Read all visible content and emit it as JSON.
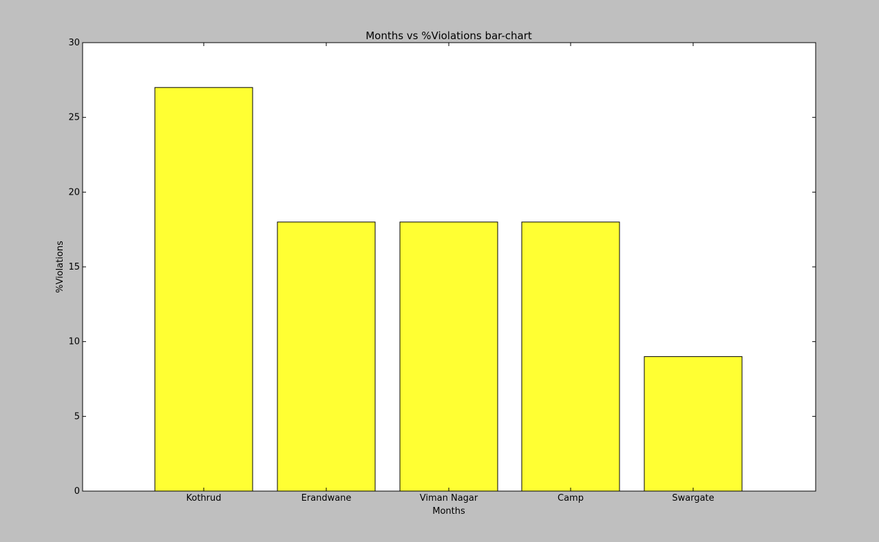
{
  "chart_data": {
    "type": "bar",
    "title": "Months vs %Violations bar-chart",
    "xlabel": "Months",
    "ylabel": "%Violations",
    "categories": [
      "Kothrud",
      "Erandwane",
      "Viman Nagar",
      "Camp",
      "Swargate"
    ],
    "values": [
      27,
      18,
      18,
      18,
      9
    ],
    "ylim": [
      0,
      30
    ],
    "yticks": [
      "0",
      "5",
      "10",
      "15",
      "20",
      "25",
      "30"
    ],
    "grid": false,
    "bar_color": "#ffff33",
    "edge_color": "#000000",
    "background_color": "#bfbfbf",
    "plot_background_color": "#ffffff"
  }
}
